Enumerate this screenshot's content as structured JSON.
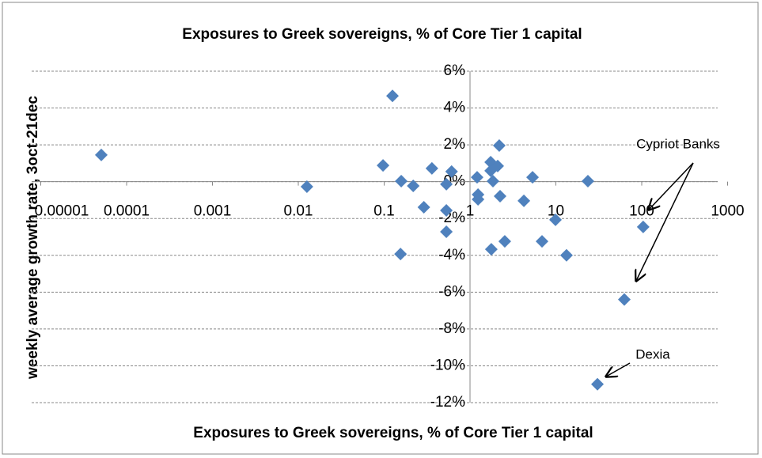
{
  "chart_data": {
    "type": "scatter",
    "title": "Exposures to Greek sovereigns, % of Core Tier 1 capital",
    "x_label": "Exposures to Greek sovereigns, % of Core Tier 1 capital",
    "y_label": "weekly average growth rate, 3oct-21dec",
    "xscale": "log",
    "grid": true,
    "xlim": [
      1e-05,
      1000
    ],
    "xticks": [
      1e-05,
      0.0001,
      0.001,
      0.01,
      0.1,
      1,
      10,
      100,
      1000
    ],
    "ylim": [
      -12,
      6
    ],
    "yticks": [
      {
        "value": -12,
        "label": "-12%"
      },
      {
        "value": -10,
        "label": "-10%"
      },
      {
        "value": -8,
        "label": "-8%"
      },
      {
        "value": -6,
        "label": "-6%"
      },
      {
        "value": -4,
        "label": "-4%"
      },
      {
        "value": -2,
        "label": "-2%"
      },
      {
        "value": 0,
        "label": "0%"
      },
      {
        "value": 2,
        "label": "2%"
      },
      {
        "value": 4,
        "label": "4%"
      },
      {
        "value": 6,
        "label": "6%"
      }
    ],
    "series": [
      {
        "color": "#4f81bd",
        "x": [
          5.07e-05,
          0.125,
          2.19,
          0.0126,
          0.097,
          0.158,
          0.218,
          0.36,
          0.61,
          0.29,
          0.53,
          0.53,
          0.53,
          0.155,
          1.21,
          1.24,
          1.24,
          1.74,
          2.1,
          1.74,
          1.85,
          2.24,
          4.24,
          5.35,
          2.54,
          1.77,
          6.9,
          9.9,
          13.3,
          23.6,
          104,
          62.7,
          30.5
        ],
        "values": [
          1.45,
          4.66,
          1.96,
          -0.27,
          0.88,
          0.03,
          -0.23,
          0.72,
          0.55,
          -1.39,
          -0.14,
          -1.56,
          -2.72,
          -3.93,
          0.24,
          -0.7,
          -0.96,
          1.06,
          0.85,
          0.59,
          0.03,
          -0.79,
          -1.04,
          0.24,
          -3.24,
          -3.67,
          -3.24,
          -2.07,
          -4.0,
          0.03,
          -2.46,
          -6.4,
          -11.0
        ]
      }
    ],
    "annotations": [
      "Cypriot Banks",
      "Dexia"
    ]
  }
}
